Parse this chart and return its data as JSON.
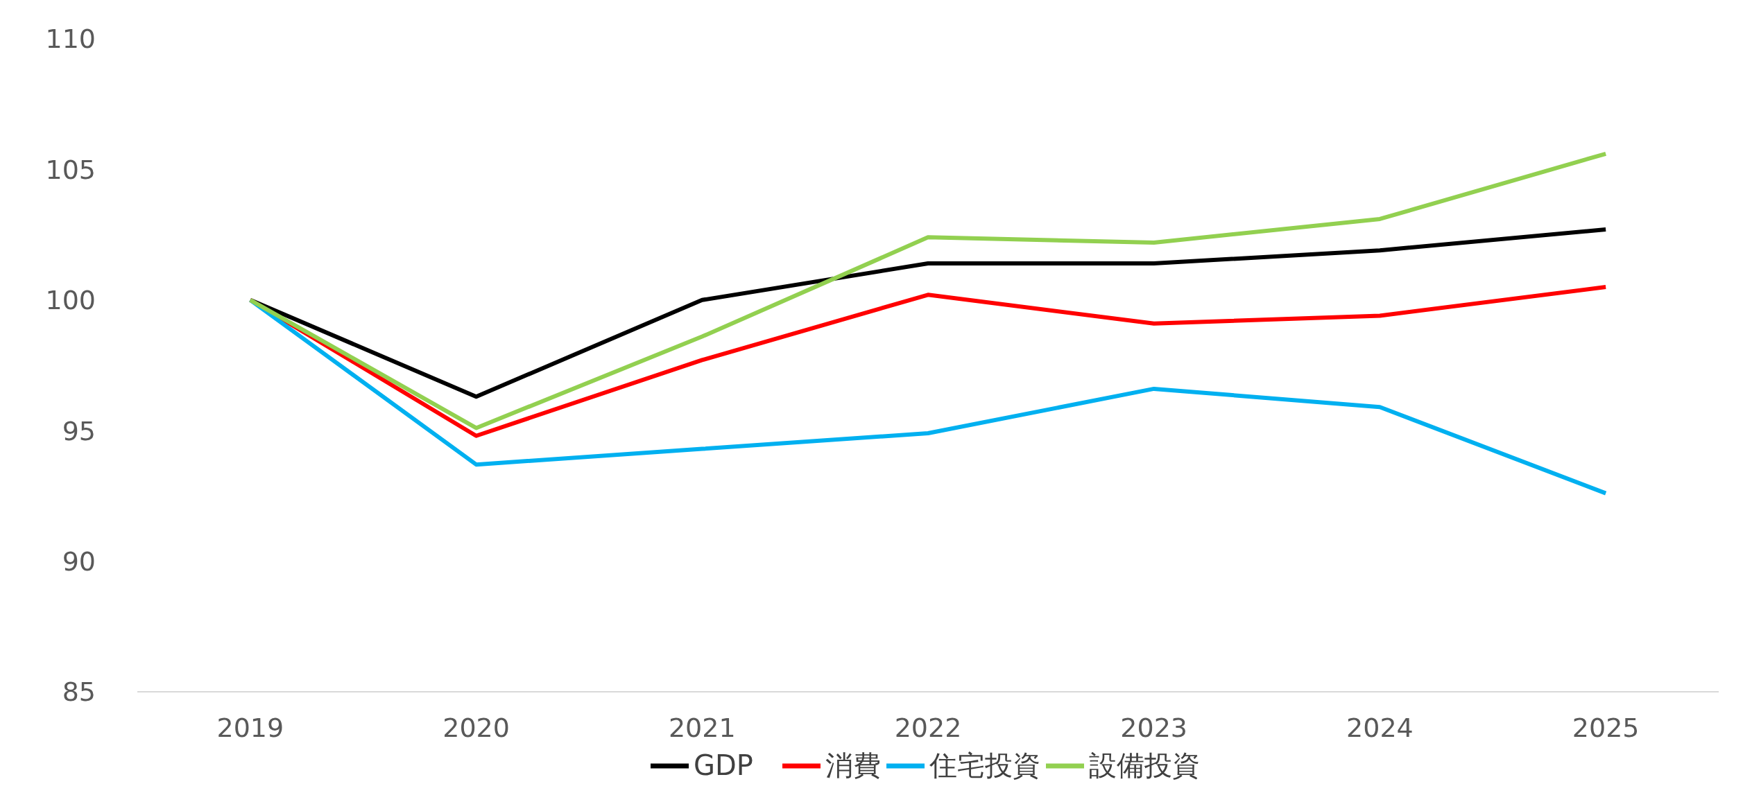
{
  "chart_data": {
    "type": "line",
    "categories": [
      "2019",
      "2020",
      "2021",
      "2022",
      "2023",
      "2024",
      "2025"
    ],
    "ylim": [
      85,
      110
    ],
    "yticks": [
      85,
      90,
      95,
      100,
      105,
      110
    ],
    "grid": false,
    "legend": "bottom",
    "line_style": "solid",
    "marker": "none",
    "series": [
      {
        "name": "GDP",
        "color": "#000000",
        "values": [
          100,
          96.3,
          100,
          101.4,
          101.4,
          101.9,
          102.7
        ]
      },
      {
        "name": "消費",
        "color": "#ff0000",
        "values": [
          100,
          94.8,
          97.7,
          100.2,
          99.1,
          99.4,
          100.5
        ]
      },
      {
        "name": "住宅投資",
        "color": "#00b0f0",
        "values": [
          100,
          93.7,
          94.3,
          94.9,
          96.6,
          95.9,
          92.6
        ]
      },
      {
        "name": "設備投資",
        "color": "#92d050",
        "values": [
          100,
          95.1,
          98.6,
          102.4,
          102.2,
          103.1,
          105.6
        ]
      }
    ]
  }
}
